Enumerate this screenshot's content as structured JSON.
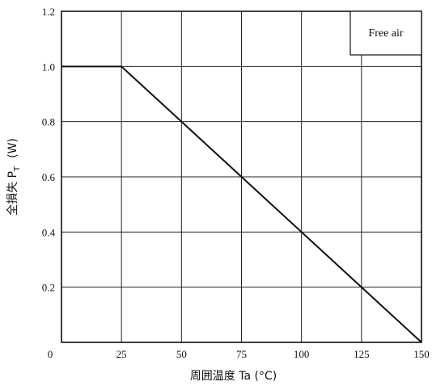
{
  "chart_data": {
    "type": "line",
    "xlabel": "周囲温度 Ta (°C)",
    "ylabel": "全損失 P_T (W)",
    "ylabel_parts": {
      "main": "全損失 P",
      "subscript": "T",
      "unit": "(W)"
    },
    "xlim": [
      0,
      150
    ],
    "ylim": [
      0,
      1.2
    ],
    "x_ticks": [
      0,
      25,
      50,
      75,
      100,
      125,
      150
    ],
    "x_tick_labels": [
      "0",
      "25",
      "50",
      "75",
      "100",
      "125",
      "150"
    ],
    "y_ticks": [
      0.2,
      0.4,
      0.6,
      0.8,
      1.0,
      1.2
    ],
    "y_tick_labels": [
      "0.2",
      "0.4",
      "0.6",
      "0.8",
      "1.0",
      "1.2"
    ],
    "grid": true,
    "legend_box": {
      "text": "Free air",
      "placement": "top-right"
    },
    "series": [
      {
        "x": [
          0,
          25,
          150
        ],
        "y": [
          1.0,
          1.0,
          0.0
        ],
        "color": "#111111"
      }
    ]
  }
}
